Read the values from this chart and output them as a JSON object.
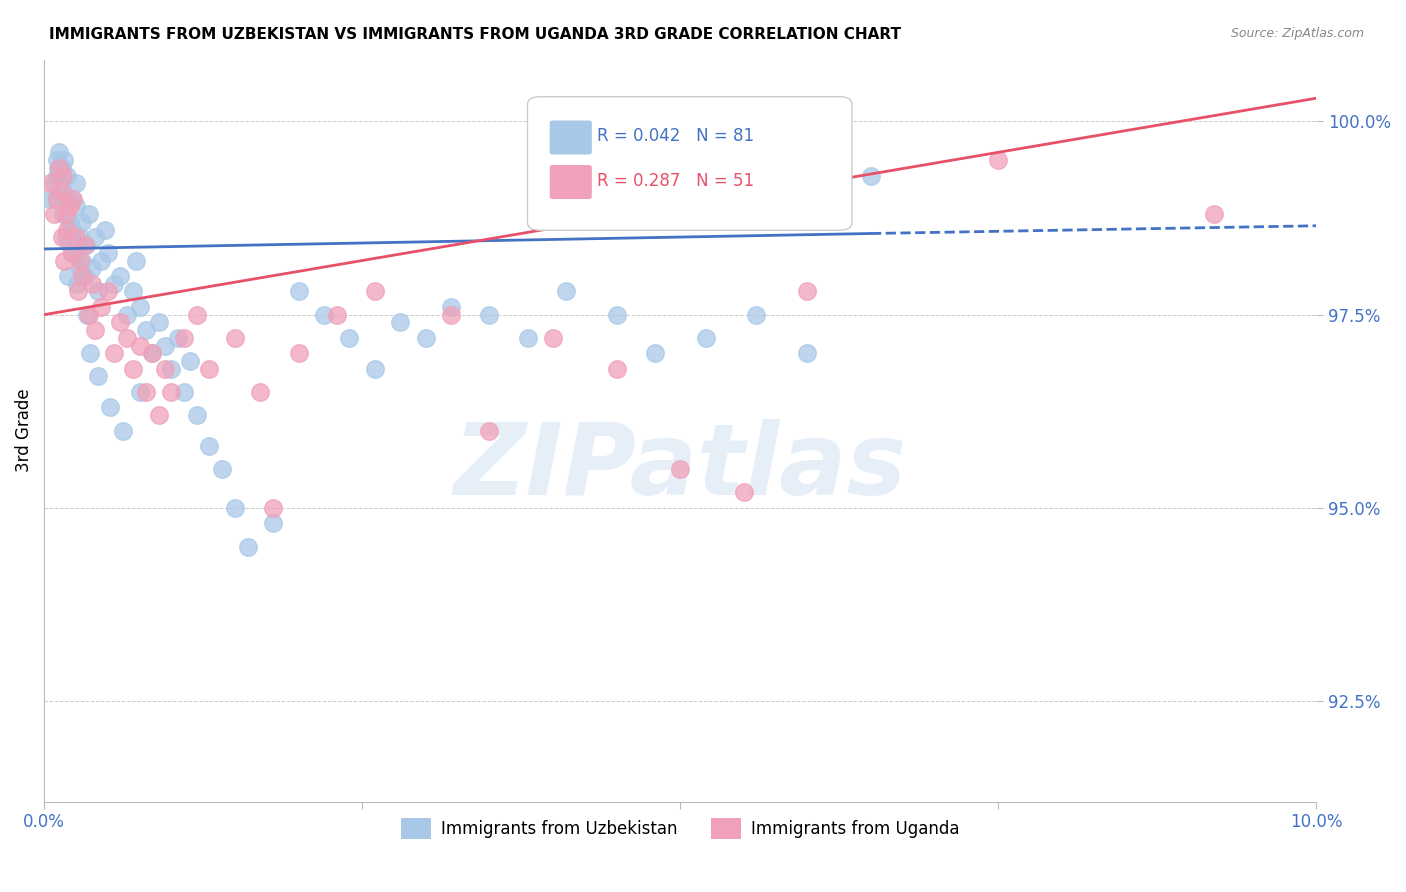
{
  "title": "IMMIGRANTS FROM UZBEKISTAN VS IMMIGRANTS FROM UGANDA 3RD GRADE CORRELATION CHART",
  "source": "Source: ZipAtlas.com",
  "xlabel_uzbekistan": "Immigrants from Uzbekistan",
  "xlabel_uganda": "Immigrants from Uganda",
  "ylabel": "3rd Grade",
  "xlim": [
    0.0,
    10.0
  ],
  "ylim": [
    91.2,
    100.8
  ],
  "yticks": [
    92.5,
    95.0,
    97.5,
    100.0
  ],
  "xticks": [
    0.0,
    2.5,
    5.0,
    7.5,
    10.0
  ],
  "uzbekistan_R": 0.042,
  "uzbekistan_N": 81,
  "uganda_R": 0.287,
  "uganda_N": 51,
  "uzbekistan_color": "#A8C8E8",
  "uganda_color": "#F0A0B8",
  "uzbekistan_line_color": "#4472C4",
  "uganda_line_color": "#E8506A",
  "axis_color": "#4472C4",
  "grid_color": "#CCCCCC",
  "background_color": "#FFFFFF",
  "watermark": "ZIPatlas",
  "uzbekistan_line_x0": 0.0,
  "uzbekistan_line_y0": 98.35,
  "uzbekistan_line_x1": 6.5,
  "uzbekistan_line_y1": 98.55,
  "uzbekistan_dash_x0": 6.5,
  "uzbekistan_dash_y0": 98.55,
  "uzbekistan_dash_x1": 10.0,
  "uzbekistan_dash_y1": 98.65,
  "uganda_line_x0": 0.0,
  "uganda_line_y0": 97.5,
  "uganda_line_x1": 10.0,
  "uganda_line_y1": 100.3,
  "uzbekistan_x": [
    0.05,
    0.08,
    0.1,
    0.1,
    0.12,
    0.13,
    0.14,
    0.15,
    0.15,
    0.16,
    0.17,
    0.18,
    0.18,
    0.2,
    0.2,
    0.22,
    0.22,
    0.23,
    0.25,
    0.25,
    0.27,
    0.28,
    0.28,
    0.3,
    0.3,
    0.32,
    0.33,
    0.35,
    0.38,
    0.4,
    0.42,
    0.45,
    0.48,
    0.5,
    0.55,
    0.6,
    0.65,
    0.7,
    0.72,
    0.75,
    0.8,
    0.85,
    0.9,
    0.95,
    1.0,
    1.05,
    1.1,
    1.15,
    1.2,
    1.3,
    1.4,
    1.5,
    1.6,
    1.8,
    2.0,
    2.2,
    2.4,
    2.6,
    2.8,
    3.0,
    3.2,
    3.5,
    3.8,
    4.1,
    4.5,
    4.8,
    5.2,
    5.6,
    6.0,
    6.5,
    0.09,
    0.11,
    0.19,
    0.24,
    0.26,
    0.34,
    0.36,
    0.42,
    0.52,
    0.62,
    0.75
  ],
  "uzbekistan_y": [
    99.0,
    99.2,
    99.5,
    99.3,
    99.6,
    99.2,
    99.4,
    99.1,
    98.8,
    99.5,
    98.5,
    99.0,
    99.3,
    98.7,
    98.4,
    99.0,
    98.6,
    98.3,
    99.2,
    98.9,
    98.4,
    98.5,
    98.1,
    98.7,
    98.2,
    98.0,
    98.4,
    98.8,
    98.1,
    98.5,
    97.8,
    98.2,
    98.6,
    98.3,
    97.9,
    98.0,
    97.5,
    97.8,
    98.2,
    97.6,
    97.3,
    97.0,
    97.4,
    97.1,
    96.8,
    97.2,
    96.5,
    96.9,
    96.2,
    95.8,
    95.5,
    95.0,
    94.5,
    94.8,
    97.8,
    97.5,
    97.2,
    96.8,
    97.4,
    97.2,
    97.6,
    97.5,
    97.2,
    97.8,
    97.5,
    97.0,
    97.2,
    97.5,
    97.0,
    99.3,
    99.0,
    99.4,
    98.0,
    98.3,
    97.9,
    97.5,
    97.0,
    96.7,
    96.3,
    96.0,
    96.5
  ],
  "uganda_x": [
    0.05,
    0.08,
    0.1,
    0.12,
    0.13,
    0.14,
    0.15,
    0.16,
    0.17,
    0.18,
    0.2,
    0.22,
    0.23,
    0.25,
    0.27,
    0.28,
    0.3,
    0.32,
    0.35,
    0.38,
    0.4,
    0.45,
    0.5,
    0.55,
    0.6,
    0.65,
    0.7,
    0.75,
    0.8,
    0.85,
    0.9,
    0.95,
    1.0,
    1.1,
    1.2,
    1.3,
    1.5,
    1.7,
    2.0,
    2.3,
    2.6,
    3.2,
    3.5,
    4.0,
    4.5,
    5.0,
    5.5,
    6.0,
    7.5,
    9.2,
    1.8
  ],
  "uganda_y": [
    99.2,
    98.8,
    99.0,
    99.4,
    99.1,
    98.5,
    99.3,
    98.2,
    98.8,
    98.6,
    98.9,
    98.3,
    99.0,
    98.5,
    97.8,
    98.2,
    98.0,
    98.4,
    97.5,
    97.9,
    97.3,
    97.6,
    97.8,
    97.0,
    97.4,
    97.2,
    96.8,
    97.1,
    96.5,
    97.0,
    96.2,
    96.8,
    96.5,
    97.2,
    97.5,
    96.8,
    97.2,
    96.5,
    97.0,
    97.5,
    97.8,
    97.5,
    96.0,
    97.2,
    96.8,
    95.5,
    95.2,
    97.8,
    99.5,
    98.8,
    95.0
  ]
}
